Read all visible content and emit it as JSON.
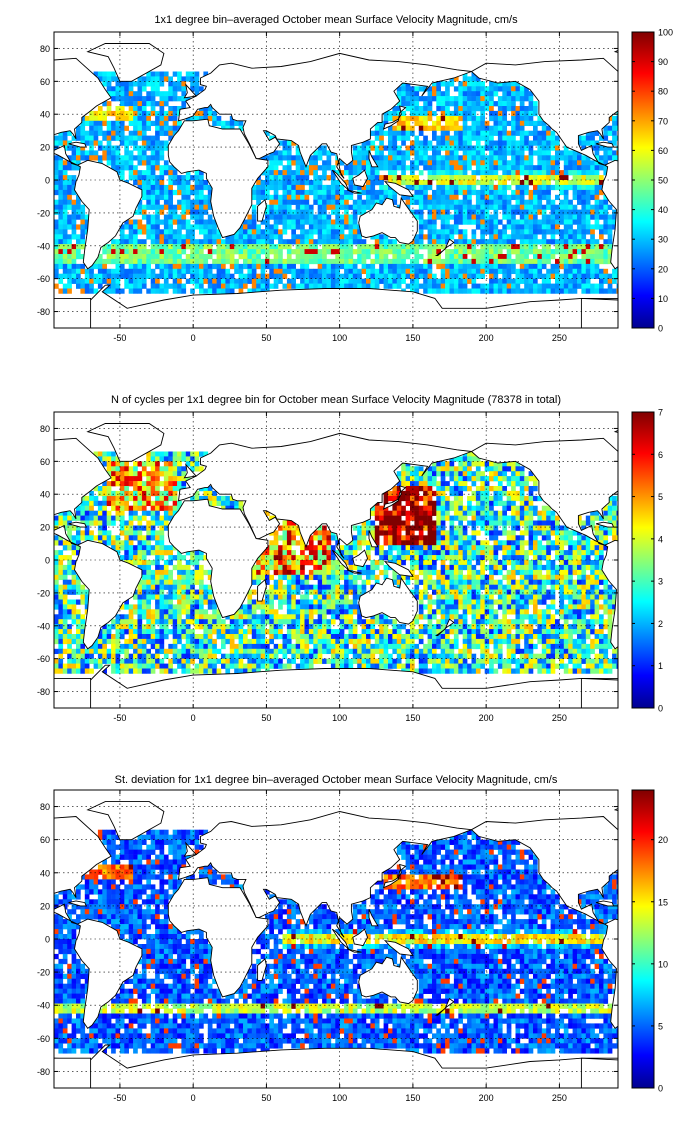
{
  "figure": {
    "panels": [
      {
        "title": "1x1 degree bin–averaged October mean Surface Velocity Magnitude, cm/s",
        "x_ticks": [
          "-50",
          "0",
          "50",
          "100",
          "150",
          "200",
          "250"
        ],
        "y_ticks": [
          "80",
          "60",
          "40",
          "20",
          "0",
          "-20",
          "-40",
          "-60",
          "-80"
        ],
        "colorbar_ticks": [
          "100",
          "90",
          "80",
          "70",
          "60",
          "50",
          "40",
          "30",
          "20",
          "10",
          "0"
        ]
      },
      {
        "title": "N of cycles per 1x1 degree bin for October mean Surface Velocity Magnitude (78378 in total)",
        "x_ticks": [
          "-50",
          "0",
          "50",
          "100",
          "150",
          "200",
          "250"
        ],
        "y_ticks": [
          "80",
          "60",
          "40",
          "20",
          "0",
          "-20",
          "-40",
          "-60",
          "-80"
        ],
        "colorbar_ticks": [
          "7",
          "6",
          "5",
          "4",
          "3",
          "2",
          "1",
          "0"
        ]
      },
      {
        "title": "St. deviation for 1x1 degree bin–averaged October mean Surface Velocity Magnitude, cm/s",
        "x_ticks": [
          "-50",
          "0",
          "50",
          "100",
          "150",
          "200",
          "250"
        ],
        "y_ticks": [
          "80",
          "60",
          "40",
          "20",
          "0",
          "-20",
          "-40",
          "-60",
          "-80"
        ],
        "colorbar_ticks": [
          "20",
          "15",
          "10",
          "5",
          "0"
        ]
      }
    ]
  },
  "map_data": [
    {
      "type": "heatmap",
      "x_range": [
        -95,
        290
      ],
      "y_range": [
        -90,
        90
      ],
      "colorbar_range": [
        0,
        100
      ],
      "colormap": "jet",
      "grid": true,
      "high_value_bands": [
        {
          "lat": 0,
          "lon_from": 130,
          "lon_to": 280
        },
        {
          "lat": 35,
          "lon_from": 140,
          "lon_to": 180
        },
        {
          "lat": 40,
          "lon_from": -75,
          "lon_to": -40
        },
        {
          "lat": -45,
          "lon_from": -60,
          "lon_to": 280
        }
      ]
    },
    {
      "type": "heatmap",
      "x_range": [
        -95,
        290
      ],
      "y_range": [
        -90,
        90
      ],
      "colorbar_range": [
        0,
        7
      ],
      "colormap": "jet",
      "grid": true
    },
    {
      "type": "heatmap",
      "x_range": [
        -95,
        290
      ],
      "y_range": [
        -90,
        90
      ],
      "colorbar_range": [
        0,
        24
      ],
      "colormap": "jet",
      "grid": true
    }
  ],
  "colors": {
    "land": "#ffffff",
    "coast": "#000000",
    "grid": "#000000",
    "colormap_stops": [
      "#00008f",
      "#0000ff",
      "#00ffff",
      "#ffff00",
      "#ff0000",
      "#800000"
    ]
  }
}
